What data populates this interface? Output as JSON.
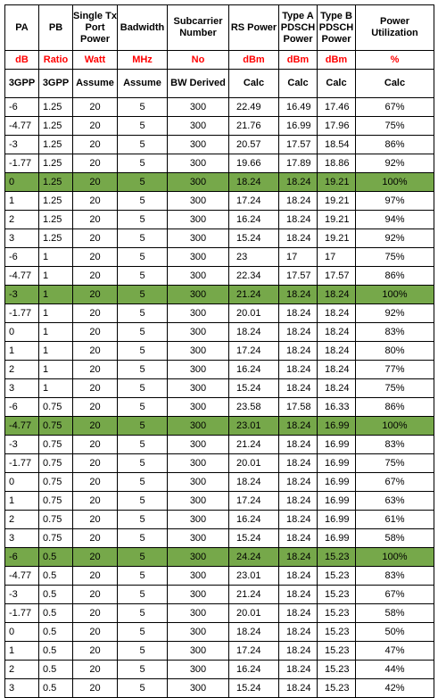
{
  "colors": {
    "highlight": "#76a84a",
    "unit_text": "#ff0000"
  },
  "headers": [
    "PA",
    "PB",
    "Single Tx Port Power",
    "Badwidth",
    "Subcarrier Number",
    "RS Power",
    "Type A PDSCH Power",
    "Type B PDSCH Power",
    "Power Utilization"
  ],
  "units": [
    "dB",
    "Ratio",
    "Watt",
    "MHz",
    "No",
    "dBm",
    "dBm",
    "dBm",
    "%"
  ],
  "sources": [
    "3GPP",
    "3GPP",
    "Assume",
    "Assume",
    "BW Derived",
    "Calc",
    "Calc",
    "Calc",
    "Calc"
  ],
  "rows": [
    {
      "cells": [
        "-6",
        "1.25",
        "20",
        "5",
        "300",
        "22.49",
        "16.49",
        "17.46",
        "67%"
      ],
      "highlight": false
    },
    {
      "cells": [
        "-4.77",
        "1.25",
        "20",
        "5",
        "300",
        "21.76",
        "16.99",
        "17.96",
        "75%"
      ],
      "highlight": false
    },
    {
      "cells": [
        "-3",
        "1.25",
        "20",
        "5",
        "300",
        "20.57",
        "17.57",
        "18.54",
        "86%"
      ],
      "highlight": false
    },
    {
      "cells": [
        "-1.77",
        "1.25",
        "20",
        "5",
        "300",
        "19.66",
        "17.89",
        "18.86",
        "92%"
      ],
      "highlight": false
    },
    {
      "cells": [
        "0",
        "1.25",
        "20",
        "5",
        "300",
        "18.24",
        "18.24",
        "19.21",
        "100%"
      ],
      "highlight": true
    },
    {
      "cells": [
        "1",
        "1.25",
        "20",
        "5",
        "300",
        "17.24",
        "18.24",
        "19.21",
        "97%"
      ],
      "highlight": false
    },
    {
      "cells": [
        "2",
        "1.25",
        "20",
        "5",
        "300",
        "16.24",
        "18.24",
        "19.21",
        "94%"
      ],
      "highlight": false
    },
    {
      "cells": [
        "3",
        "1.25",
        "20",
        "5",
        "300",
        "15.24",
        "18.24",
        "19.21",
        "92%"
      ],
      "highlight": false
    },
    {
      "cells": [
        "-6",
        "1",
        "20",
        "5",
        "300",
        "23",
        "17",
        "17",
        "75%"
      ],
      "highlight": false
    },
    {
      "cells": [
        "-4.77",
        "1",
        "20",
        "5",
        "300",
        "22.34",
        "17.57",
        "17.57",
        "86%"
      ],
      "highlight": false
    },
    {
      "cells": [
        "-3",
        "1",
        "20",
        "5",
        "300",
        "21.24",
        "18.24",
        "18.24",
        "100%"
      ],
      "highlight": true
    },
    {
      "cells": [
        "-1.77",
        "1",
        "20",
        "5",
        "300",
        "20.01",
        "18.24",
        "18.24",
        "92%"
      ],
      "highlight": false
    },
    {
      "cells": [
        "0",
        "1",
        "20",
        "5",
        "300",
        "18.24",
        "18.24",
        "18.24",
        "83%"
      ],
      "highlight": false
    },
    {
      "cells": [
        "1",
        "1",
        "20",
        "5",
        "300",
        "17.24",
        "18.24",
        "18.24",
        "80%"
      ],
      "highlight": false
    },
    {
      "cells": [
        "2",
        "1",
        "20",
        "5",
        "300",
        "16.24",
        "18.24",
        "18.24",
        "77%"
      ],
      "highlight": false
    },
    {
      "cells": [
        "3",
        "1",
        "20",
        "5",
        "300",
        "15.24",
        "18.24",
        "18.24",
        "75%"
      ],
      "highlight": false
    },
    {
      "cells": [
        "-6",
        "0.75",
        "20",
        "5",
        "300",
        "23.58",
        "17.58",
        "16.33",
        "86%"
      ],
      "highlight": false
    },
    {
      "cells": [
        "-4.77",
        "0.75",
        "20",
        "5",
        "300",
        "23.01",
        "18.24",
        "16.99",
        "100%"
      ],
      "highlight": true
    },
    {
      "cells": [
        "-3",
        "0.75",
        "20",
        "5",
        "300",
        "21.24",
        "18.24",
        "16.99",
        "83%"
      ],
      "highlight": false
    },
    {
      "cells": [
        "-1.77",
        "0.75",
        "20",
        "5",
        "300",
        "20.01",
        "18.24",
        "16.99",
        "75%"
      ],
      "highlight": false
    },
    {
      "cells": [
        "0",
        "0.75",
        "20",
        "5",
        "300",
        "18.24",
        "18.24",
        "16.99",
        "67%"
      ],
      "highlight": false
    },
    {
      "cells": [
        "1",
        "0.75",
        "20",
        "5",
        "300",
        "17.24",
        "18.24",
        "16.99",
        "63%"
      ],
      "highlight": false
    },
    {
      "cells": [
        "2",
        "0.75",
        "20",
        "5",
        "300",
        "16.24",
        "18.24",
        "16.99",
        "61%"
      ],
      "highlight": false
    },
    {
      "cells": [
        "3",
        "0.75",
        "20",
        "5",
        "300",
        "15.24",
        "18.24",
        "16.99",
        "58%"
      ],
      "highlight": false
    },
    {
      "cells": [
        "-6",
        "0.5",
        "20",
        "5",
        "300",
        "24.24",
        "18.24",
        "15.23",
        "100%"
      ],
      "highlight": true
    },
    {
      "cells": [
        "-4.77",
        "0.5",
        "20",
        "5",
        "300",
        "23.01",
        "18.24",
        "15.23",
        "83%"
      ],
      "highlight": false
    },
    {
      "cells": [
        "-3",
        "0.5",
        "20",
        "5",
        "300",
        "21.24",
        "18.24",
        "15.23",
        "67%"
      ],
      "highlight": false
    },
    {
      "cells": [
        "-1.77",
        "0.5",
        "20",
        "5",
        "300",
        "20.01",
        "18.24",
        "15.23",
        "58%"
      ],
      "highlight": false
    },
    {
      "cells": [
        "0",
        "0.5",
        "20",
        "5",
        "300",
        "18.24",
        "18.24",
        "15.23",
        "50%"
      ],
      "highlight": false
    },
    {
      "cells": [
        "1",
        "0.5",
        "20",
        "5",
        "300",
        "17.24",
        "18.24",
        "15.23",
        "47%"
      ],
      "highlight": false
    },
    {
      "cells": [
        "2",
        "0.5",
        "20",
        "5",
        "300",
        "16.24",
        "18.24",
        "15.23",
        "44%"
      ],
      "highlight": false
    },
    {
      "cells": [
        "3",
        "0.5",
        "20",
        "5",
        "300",
        "15.24",
        "18.24",
        "15.23",
        "42%"
      ],
      "highlight": false
    }
  ]
}
